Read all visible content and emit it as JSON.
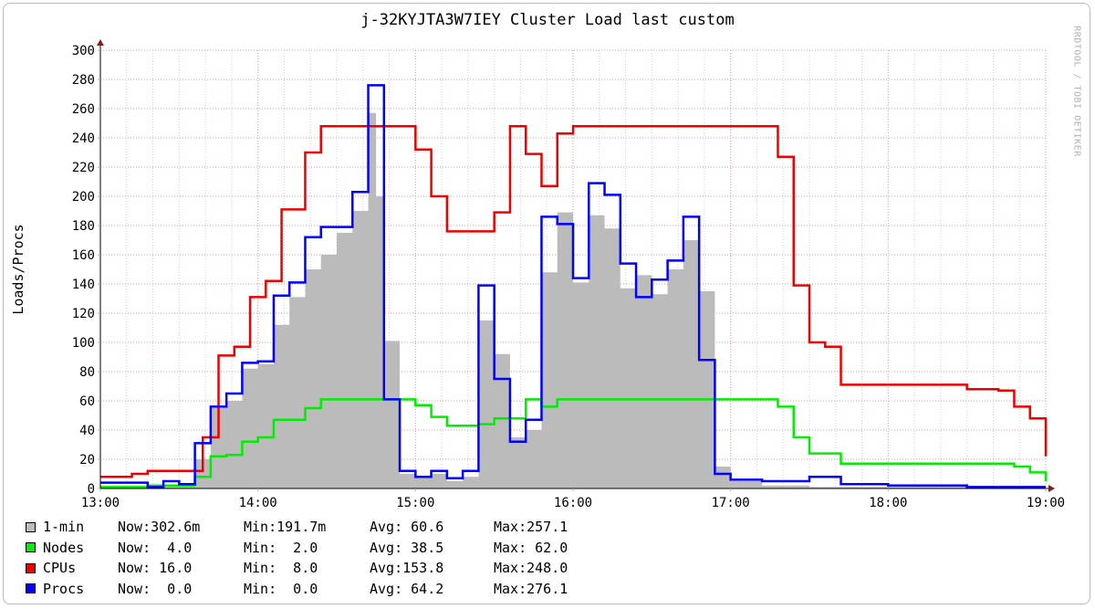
{
  "chart_data": {
    "type": "area",
    "title": "j-32KYJTA3W7IEY Cluster Load last custom",
    "xlabel": "",
    "ylabel": "Loads/Procs",
    "watermark": "RRDTOOL / TOBI OETIKER",
    "x_ticks": [
      "13:00",
      "14:00",
      "15:00",
      "16:00",
      "17:00",
      "18:00",
      "19:00"
    ],
    "y_ticks": [
      0,
      20,
      40,
      60,
      80,
      100,
      120,
      140,
      160,
      180,
      200,
      220,
      240,
      260,
      280,
      300
    ],
    "xlim": [
      13.0,
      19.0
    ],
    "ylim": [
      0,
      300
    ],
    "grid": true,
    "series": [
      {
        "name": "1-min",
        "color": "#bbbbbb",
        "style": "area",
        "x": [
          13.0,
          13.3,
          13.6,
          13.7,
          13.8,
          13.9,
          14.0,
          14.1,
          14.2,
          14.3,
          14.4,
          14.5,
          14.6,
          14.7,
          14.75,
          14.8,
          14.9,
          15.0,
          15.1,
          15.2,
          15.3,
          15.4,
          15.5,
          15.6,
          15.7,
          15.8,
          15.9,
          16.0,
          16.1,
          16.2,
          16.3,
          16.4,
          16.5,
          16.6,
          16.7,
          16.8,
          16.9,
          17.0,
          17.2,
          17.5,
          18.0,
          18.5,
          19.0
        ],
        "y": [
          1,
          2,
          20,
          55,
          60,
          82,
          85,
          112,
          131,
          150,
          160,
          175,
          190,
          257,
          200,
          101,
          10,
          8,
          10,
          5,
          8,
          115,
          92,
          35,
          40,
          148,
          189,
          141,
          187,
          178,
          137,
          146,
          133,
          150,
          170,
          135,
          15,
          5,
          2,
          1,
          1,
          1,
          1
        ]
      },
      {
        "name": "Nodes",
        "color": "#00ee00",
        "style": "line",
        "x": [
          13.0,
          13.3,
          13.6,
          13.7,
          13.8,
          13.9,
          14.0,
          14.1,
          14.3,
          14.4,
          14.6,
          14.8,
          14.9,
          15.0,
          15.1,
          15.2,
          15.4,
          15.5,
          15.7,
          15.8,
          15.9,
          16.0,
          16.5,
          17.0,
          17.3,
          17.4,
          17.5,
          17.7,
          18.0,
          18.5,
          18.8,
          18.9,
          19.0
        ],
        "y": [
          1,
          2,
          8,
          22,
          23,
          32,
          35,
          47,
          55,
          61,
          61,
          61,
          61,
          57,
          49,
          43,
          44,
          48,
          61,
          56,
          61,
          61,
          61,
          61,
          56,
          35,
          24,
          17,
          17,
          17,
          15,
          11,
          5
        ]
      },
      {
        "name": "CPUs",
        "color": "#ee0000",
        "style": "line",
        "x": [
          13.0,
          13.1,
          13.2,
          13.3,
          13.55,
          13.65,
          13.75,
          13.85,
          13.95,
          14.05,
          14.15,
          14.3,
          14.4,
          14.5,
          14.7,
          15.0,
          15.1,
          15.2,
          15.4,
          15.5,
          15.6,
          15.7,
          15.8,
          15.9,
          16.0,
          16.1,
          16.3,
          16.5,
          16.7,
          16.9,
          17.1,
          17.3,
          17.4,
          17.5,
          17.6,
          17.7,
          18.0,
          18.3,
          18.5,
          18.7,
          18.8,
          18.9,
          19.0
        ],
        "y": [
          8,
          8,
          10,
          12,
          12,
          35,
          91,
          97,
          131,
          142,
          191,
          230,
          248,
          248,
          248,
          232,
          200,
          176,
          176,
          189,
          248,
          229,
          207,
          243,
          248,
          248,
          248,
          248,
          248,
          248,
          248,
          227,
          139,
          100,
          97,
          71,
          71,
          71,
          68,
          67,
          56,
          48,
          22
        ]
      },
      {
        "name": "Procs",
        "color": "#0000ff",
        "style": "line",
        "x": [
          13.0,
          13.3,
          13.4,
          13.5,
          13.6,
          13.7,
          13.8,
          13.9,
          14.0,
          14.1,
          14.2,
          14.3,
          14.4,
          14.5,
          14.6,
          14.7,
          14.8,
          14.9,
          15.0,
          15.1,
          15.2,
          15.3,
          15.4,
          15.5,
          15.6,
          15.7,
          15.8,
          15.9,
          16.0,
          16.1,
          16.2,
          16.3,
          16.4,
          16.5,
          16.6,
          16.7,
          16.8,
          16.9,
          17.0,
          17.2,
          17.5,
          17.7,
          18.0,
          18.5,
          19.0
        ],
        "y": [
          4,
          1,
          5,
          3,
          31,
          56,
          65,
          86,
          87,
          132,
          141,
          172,
          179,
          179,
          203,
          276,
          61,
          12,
          8,
          12,
          7,
          12,
          139,
          75,
          32,
          47,
          186,
          181,
          144,
          209,
          201,
          154,
          131,
          143,
          156,
          186,
          88,
          10,
          6,
          5,
          8,
          3,
          2,
          1,
          1
        ]
      }
    ],
    "legend": {
      "placement": "bottom-left",
      "entries": [
        {
          "name": "1-min",
          "color": "#bbbbbb",
          "now": "Now:302.6m",
          "min": "Min:191.7m",
          "avg": "Avg: 60.6",
          "max": "Max:257.1"
        },
        {
          "name": "Nodes",
          "color": "#00ee00",
          "now": "Now:  4.0",
          "min": "Min:  2.0",
          "avg": "Avg: 38.5",
          "max": "Max: 62.0"
        },
        {
          "name": "CPUs",
          "color": "#ee0000",
          "now": "Now: 16.0",
          "min": "Min:  8.0",
          "avg": "Avg:153.8",
          "max": "Max:248.0"
        },
        {
          "name": "Procs",
          "color": "#0000ff",
          "now": "Now:  0.0",
          "min": "Min:  0.0",
          "avg": "Avg: 64.2",
          "max": "Max:276.1"
        }
      ]
    }
  }
}
